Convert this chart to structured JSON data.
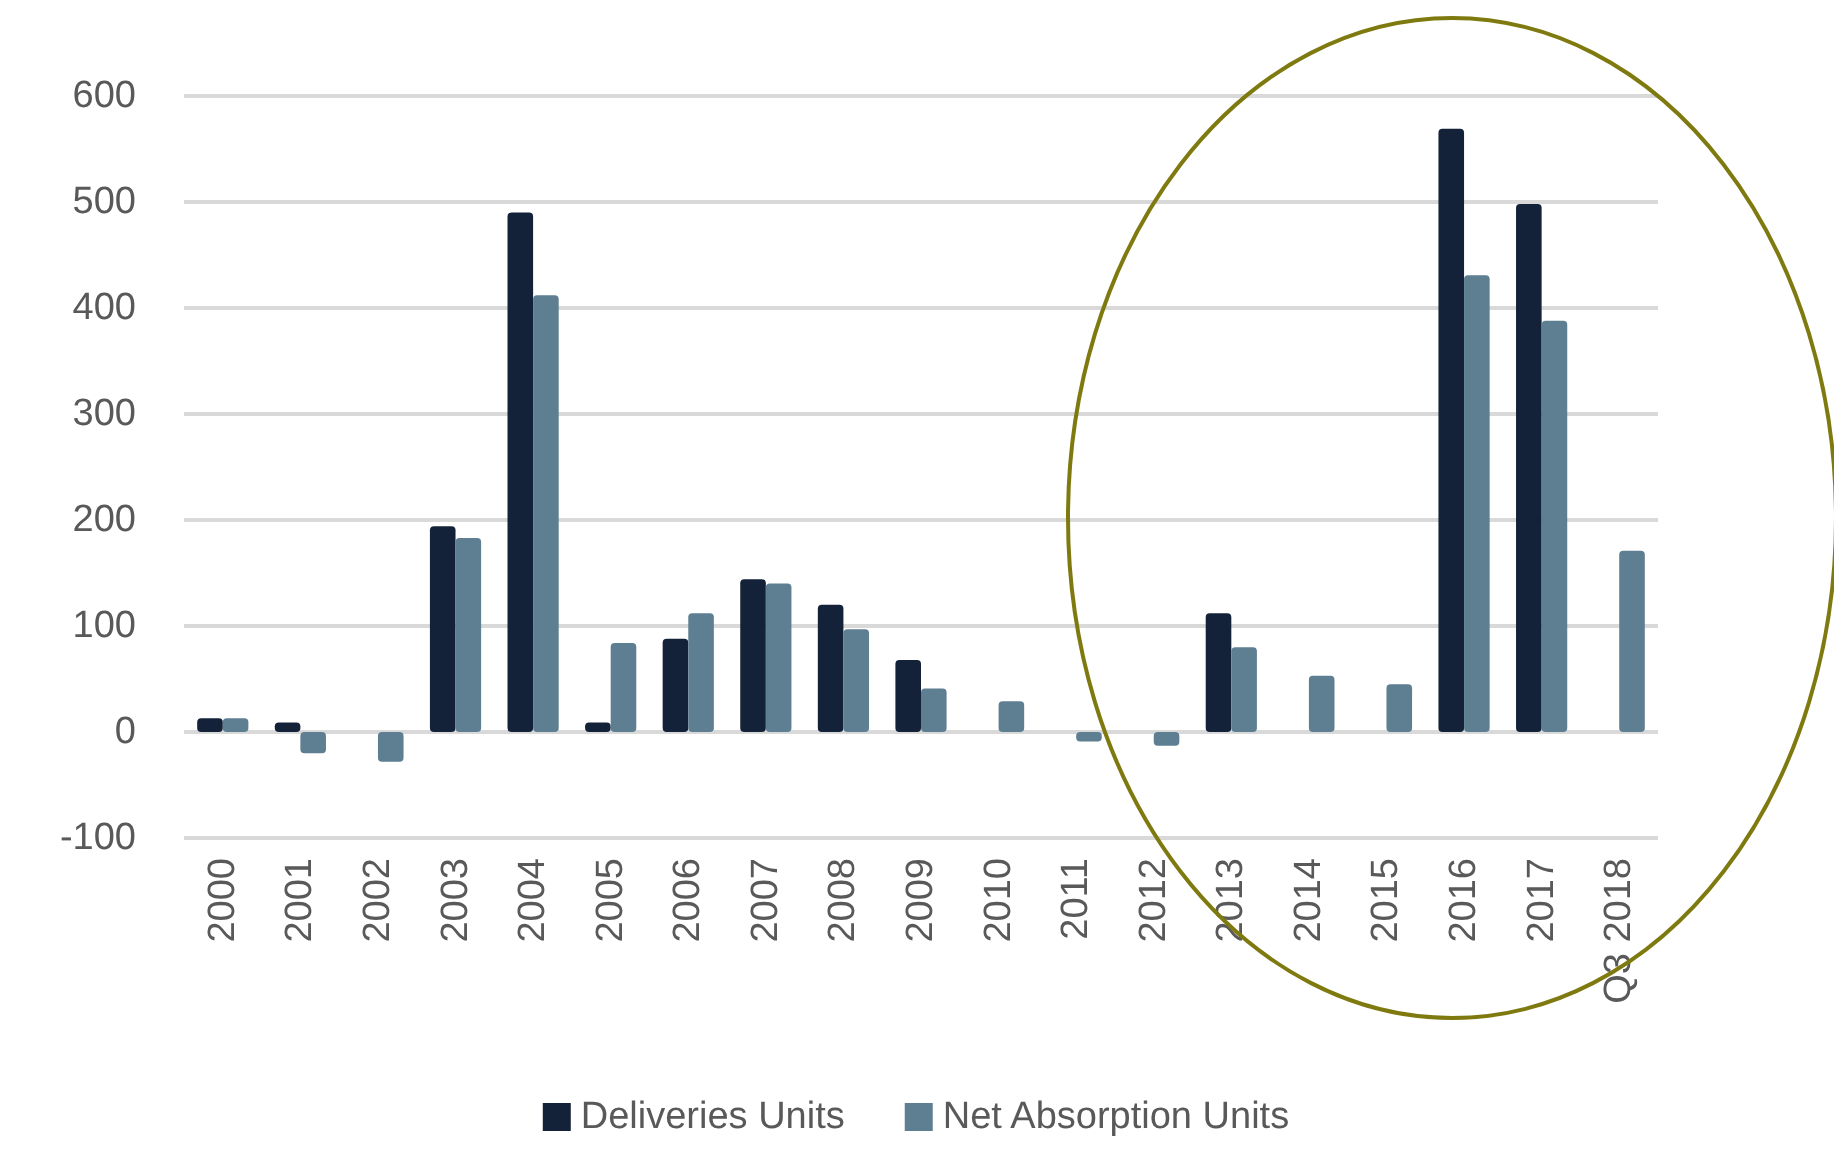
{
  "chart_data": {
    "type": "bar",
    "categories": [
      "2000",
      "2001",
      "2002",
      "2003",
      "2004",
      "2005",
      "2006",
      "2007",
      "2008",
      "2009",
      "2010",
      "2011",
      "2012",
      "2013",
      "2014",
      "2015",
      "2016",
      "2017",
      "Q3 2018"
    ],
    "series": [
      {
        "name": "Deliveries Units",
        "color": "#132238",
        "values": [
          13,
          9,
          null,
          194,
          490,
          9,
          88,
          144,
          120,
          68,
          null,
          null,
          null,
          112,
          null,
          null,
          569,
          498,
          null
        ]
      },
      {
        "name": "Net Absorption Units",
        "color": "#5e7f92",
        "values": [
          13,
          -20,
          -28,
          183,
          412,
          84,
          112,
          140,
          97,
          41,
          29,
          -9,
          -13,
          80,
          53,
          45,
          431,
          388,
          171
        ]
      }
    ],
    "ylim": [
      -100,
      600
    ],
    "yticks": [
      -100,
      0,
      100,
      200,
      300,
      400,
      500,
      600
    ],
    "grid": "y",
    "legend": "bottom"
  }
}
